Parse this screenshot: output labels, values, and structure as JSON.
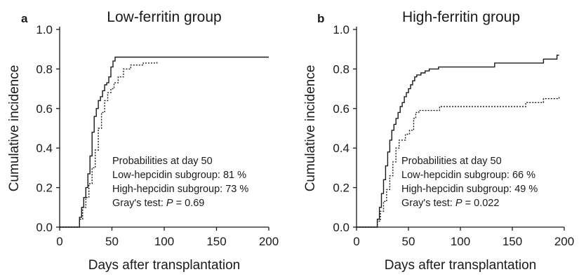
{
  "chart_data": [
    {
      "panel": "a",
      "type": "line",
      "title": "Low-ferritin group",
      "xlabel": "Days after transplantation",
      "ylabel": "Cumulative incidence",
      "xlim": [
        0,
        200
      ],
      "ylim": [
        0,
        1.0
      ],
      "xticks": [
        "0",
        "50",
        "100",
        "150",
        "200"
      ],
      "yticks": [
        "0.0",
        "0.2",
        "0.4",
        "0.6",
        "0.8",
        "1.0"
      ],
      "step": true,
      "grid": false,
      "series": [
        {
          "style": "solid",
          "x": [
            0,
            19,
            21,
            23,
            25,
            27,
            29,
            31,
            33,
            35,
            37,
            39,
            41,
            43,
            45,
            47,
            49,
            51,
            53,
            55,
            200
          ],
          "y": [
            0,
            0.05,
            0.1,
            0.15,
            0.2,
            0.27,
            0.36,
            0.48,
            0.56,
            0.6,
            0.64,
            0.66,
            0.69,
            0.72,
            0.73,
            0.76,
            0.81,
            0.84,
            0.86,
            0.86,
            0.86
          ]
        },
        {
          "style": "dotted",
          "x": [
            0,
            19,
            22,
            25,
            28,
            31,
            34,
            37,
            40,
            43,
            46,
            49,
            52,
            56,
            61,
            68,
            80,
            93
          ],
          "y": [
            0,
            0.04,
            0.1,
            0.15,
            0.22,
            0.3,
            0.39,
            0.5,
            0.58,
            0.64,
            0.68,
            0.7,
            0.73,
            0.76,
            0.8,
            0.82,
            0.83,
            0.84
          ]
        }
      ],
      "annotations": [
        "Probabilities at day 50",
        "Low-hepcidin subgroup: 81 %",
        "High-hepcidin subgroup: 73 %"
      ],
      "test_prefix": "Gray's test: ",
      "test_symbol": "P",
      "test_suffix": " = 0.69"
    },
    {
      "panel": "b",
      "type": "line",
      "title": "High-ferritin group",
      "xlabel": "Days after transplantation",
      "ylabel": "Cumulative incidence",
      "xlim": [
        0,
        200
      ],
      "ylim": [
        0,
        1.0
      ],
      "xticks": [
        "0",
        "50",
        "100",
        "150",
        "200"
      ],
      "yticks": [
        "0.0",
        "0.2",
        "0.4",
        "0.6",
        "0.8",
        "1.0"
      ],
      "step": true,
      "grid": false,
      "series": [
        {
          "style": "solid",
          "x": [
            0,
            20,
            22,
            24,
            26,
            28,
            30,
            32,
            34,
            36,
            38,
            40,
            42,
            44,
            46,
            48,
            50,
            52,
            54,
            56,
            58,
            62,
            66,
            70,
            79,
            133,
            180,
            193,
            195
          ],
          "y": [
            0,
            0.04,
            0.1,
            0.17,
            0.24,
            0.31,
            0.38,
            0.44,
            0.49,
            0.52,
            0.55,
            0.58,
            0.61,
            0.63,
            0.66,
            0.68,
            0.7,
            0.72,
            0.74,
            0.76,
            0.77,
            0.78,
            0.79,
            0.8,
            0.81,
            0.83,
            0.85,
            0.87,
            0.87
          ]
        },
        {
          "style": "dotted",
          "x": [
            0,
            20,
            23,
            26,
            29,
            32,
            35,
            38,
            41,
            44,
            47,
            51,
            55,
            57,
            60,
            80,
            110,
            163,
            180,
            195
          ],
          "y": [
            0,
            0.03,
            0.08,
            0.13,
            0.19,
            0.26,
            0.33,
            0.4,
            0.44,
            0.44,
            0.47,
            0.49,
            0.55,
            0.58,
            0.59,
            0.61,
            0.61,
            0.63,
            0.65,
            0.66
          ]
        }
      ],
      "annotations": [
        "Probabilities at day 50",
        "Low-hepcidin  subgroup: 66 %",
        "High-hepcidin subgroup: 49 %"
      ],
      "test_prefix": "Gray's test: ",
      "test_symbol": "P",
      "test_suffix": " = 0.022"
    }
  ]
}
